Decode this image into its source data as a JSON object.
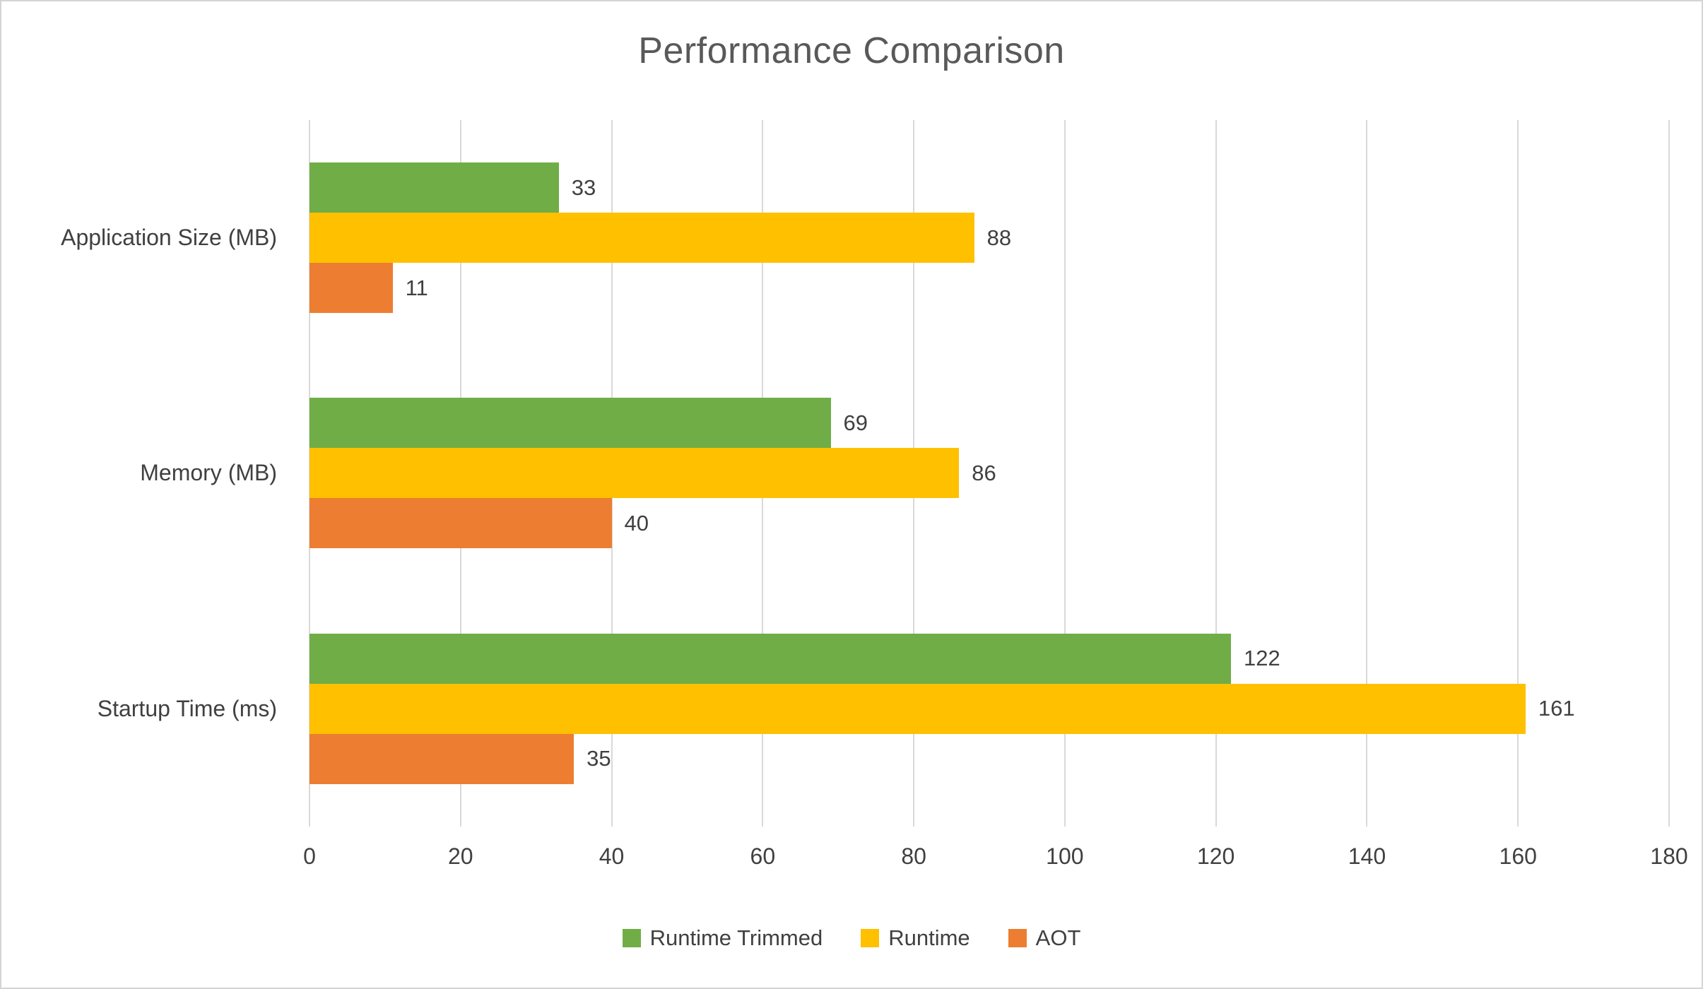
{
  "title": "Performance Comparison",
  "chart_data": {
    "type": "bar",
    "orientation": "horizontal",
    "title": "Performance Comparison",
    "categories": [
      "Application Size (MB)",
      "Memory (MB)",
      "Startup Time (ms)"
    ],
    "series": [
      {
        "name": "Runtime Trimmed",
        "color": "#70AD47",
        "values": [
          33,
          69,
          122
        ]
      },
      {
        "name": "Runtime",
        "color": "#FFC000",
        "values": [
          88,
          86,
          161
        ]
      },
      {
        "name": "AOT",
        "color": "#ED7D31",
        "values": [
          11,
          40,
          35
        ]
      }
    ],
    "xlabel": "",
    "ylabel": "",
    "xlim": [
      0,
      180
    ],
    "xticks": [
      0,
      20,
      40,
      60,
      80,
      100,
      120,
      140,
      160,
      180
    ],
    "grid": true,
    "gridline_color": "#d9d9d9",
    "legend_position": "bottom",
    "value_labels": true
  }
}
